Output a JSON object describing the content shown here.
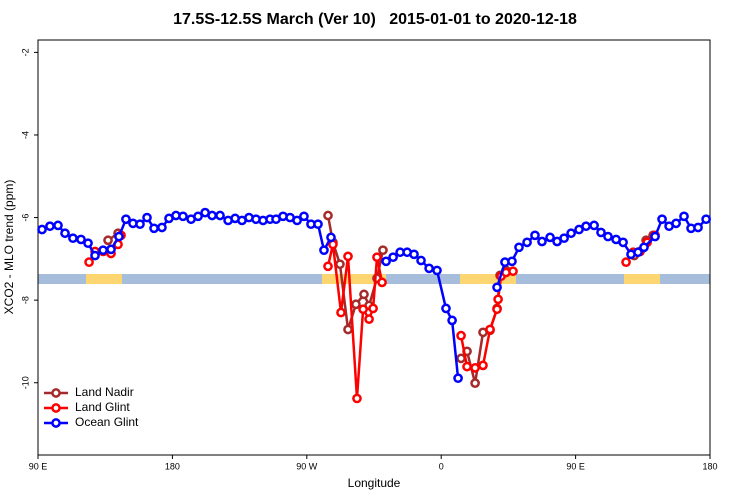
{
  "chart_data": {
    "type": "line",
    "title": "17.5S-12.5S March (Ver 10)   2015-01-01 to 2020-12-18",
    "xlabel": "Longitude",
    "ylabel": "XCO2 - MLO trend (ppm)",
    "xlim": [
      90,
      540
    ],
    "ylim": [
      -11.75,
      -1.7
    ],
    "xticks": [
      {
        "value": 90,
        "label": "90 E"
      },
      {
        "value": 180,
        "label": "180"
      },
      {
        "value": 270,
        "label": "90 W"
      },
      {
        "value": 360,
        "label": "0"
      },
      {
        "value": 450,
        "label": "90 E"
      },
      {
        "value": 540,
        "label": "180"
      }
    ],
    "yticks": [
      -2,
      -4,
      -6,
      -8,
      -10
    ],
    "legend": "bottom-left",
    "series": [
      {
        "name": "Land Nadir",
        "color": "#a52a2a",
        "x": [
          136.9,
          143.6,
          null,
          284.2,
          287.5,
          292.2,
          297.6,
          302.9,
          308.3,
          311.7,
          317.0,
          321.0,
          null,
          373.3,
          377.3,
          382.7,
          388.0,
          392.7,
          397.4,
          399.4,
          403.4,
          null,
          489.2,
          497.2,
          501.9
        ],
        "values": [
          -6.55,
          -6.38,
          null,
          -5.95,
          -6.6,
          -7.13,
          -8.71,
          -8.1,
          -7.86,
          -8.13,
          -7.47,
          -6.79,
          null,
          -9.41,
          -9.24,
          -10.01,
          -8.78,
          -8.73,
          -8.2,
          -7.4,
          -7.28,
          null,
          -6.92,
          -6.55,
          -6.43
        ]
      },
      {
        "name": "Land Glint",
        "color": "#ff0000",
        "x": [
          124.2,
          128.2,
          133.6,
          138.9,
          143.6,
          145.6,
          null,
          284.2,
          287.5,
          292.9,
          297.6,
          303.6,
          307.7,
          311.7,
          314.4,
          317.0,
          320.4,
          null,
          373.3,
          377.3,
          382.7,
          388.0,
          392.7,
          397.4,
          398.1,
          400.1,
          403.4,
          408.1,
          null,
          483.8,
          488.5,
          493.2,
          497.9,
          503.2
        ],
        "values": [
          -7.08,
          -6.82,
          -6.82,
          -6.87,
          -6.65,
          -6.43,
          null,
          -7.18,
          -6.65,
          -8.3,
          -6.94,
          -10.38,
          -8.22,
          -8.46,
          -8.2,
          -6.96,
          -7.57,
          null,
          -8.86,
          -9.61,
          -9.64,
          -9.58,
          -8.71,
          -8.22,
          -7.98,
          -7.42,
          -7.33,
          -7.3,
          null,
          -7.08,
          -6.84,
          -6.82,
          -6.6,
          -6.43
        ]
      },
      {
        "name": "Ocean Glint",
        "color": "#0000ff",
        "x": [
          92.7,
          98.0,
          103.4,
          108.1,
          113.4,
          118.8,
          123.5,
          128.2,
          133.6,
          138.9,
          144.2,
          148.9,
          153.6,
          158.3,
          163.0,
          167.7,
          173.0,
          177.7,
          182.4,
          187.1,
          192.5,
          197.2,
          201.9,
          206.6,
          211.9,
          217.3,
          222.0,
          226.6,
          231.3,
          236.0,
          240.7,
          245.4,
          249.4,
          254.1,
          258.8,
          263.5,
          268.1,
          272.8,
          277.5,
          281.5,
          286.2,
          null,
          323.1,
          327.8,
          332.5,
          337.2,
          341.8,
          346.5,
          351.9,
          357.2,
          363.2,
          367.3,
          371.3,
          null,
          397.4,
          402.7,
          407.4,
          412.1,
          417.5,
          422.8,
          427.5,
          432.9,
          437.6,
          442.3,
          447.0,
          452.3,
          457.0,
          462.4,
          467.0,
          471.7,
          477.1,
          481.8,
          487.1,
          491.8,
          495.8,
          503.2,
          507.9,
          512.6,
          517.3,
          522.6,
          527.3,
          532.0,
          537.4
        ],
        "values": [
          -6.29,
          -6.21,
          -6.19,
          -6.38,
          -6.5,
          -6.53,
          -6.62,
          -6.92,
          -6.79,
          -6.77,
          -6.46,
          -6.04,
          -6.14,
          -6.16,
          -6.0,
          -6.26,
          -6.24,
          -6.02,
          -5.95,
          -5.97,
          -6.04,
          -5.97,
          -5.88,
          -5.95,
          -5.95,
          -6.07,
          -6.02,
          -6.07,
          -6.0,
          -6.04,
          -6.07,
          -6.04,
          -6.04,
          -5.97,
          -6.0,
          -6.07,
          -5.97,
          -6.16,
          -6.16,
          -6.79,
          -6.48,
          null,
          -7.06,
          -6.96,
          -6.84,
          -6.84,
          -6.89,
          -7.04,
          -7.23,
          -7.28,
          -8.2,
          -8.49,
          -9.89,
          null,
          -7.69,
          -7.08,
          -7.06,
          -6.72,
          -6.6,
          -6.43,
          -6.58,
          -6.48,
          -6.58,
          -6.5,
          -6.38,
          -6.29,
          -6.21,
          -6.19,
          -6.36,
          -6.46,
          -6.53,
          -6.6,
          -6.89,
          -6.84,
          -6.72,
          -6.46,
          -6.04,
          -6.21,
          -6.14,
          -5.97,
          -6.26,
          -6.24,
          -6.04
        ]
      }
    ]
  }
}
